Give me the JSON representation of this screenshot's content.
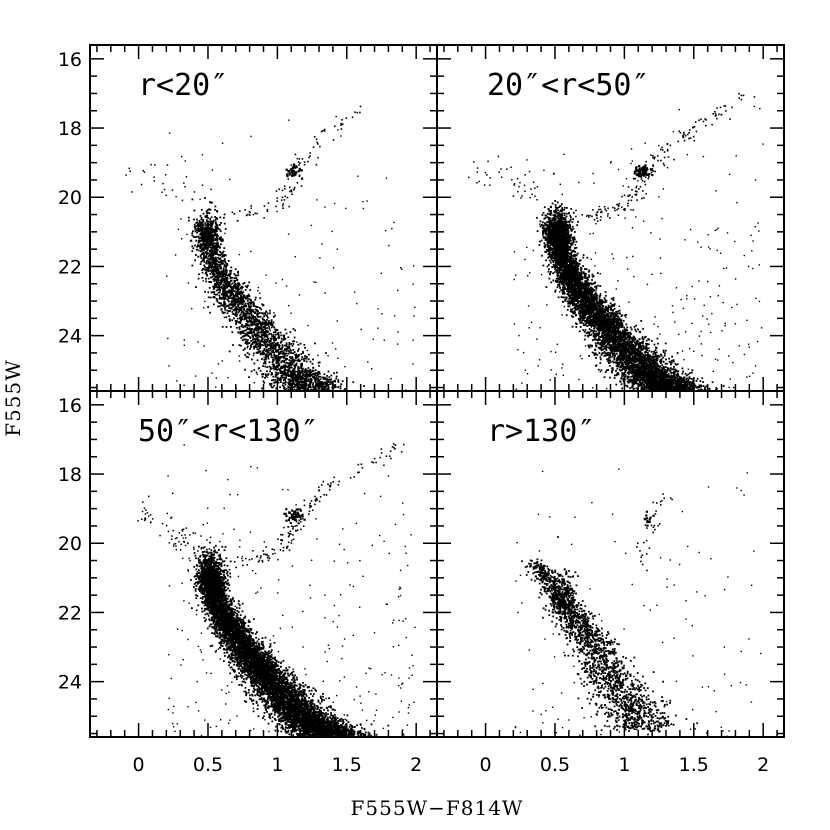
{
  "chart_data": {
    "type": "scatter",
    "xlabel": "F555W−F814W",
    "ylabel": "F555W",
    "xlim": [
      -0.35,
      2.15
    ],
    "ylim": [
      25.6,
      15.6
    ],
    "y_inverted": true,
    "x_ticks": [
      0,
      0.5,
      1,
      1.5,
      2
    ],
    "x_tick_labels": [
      "0",
      "0.5",
      "1",
      "1.5",
      "2"
    ],
    "y_ticks": [
      16,
      18,
      20,
      22,
      24
    ],
    "y_tick_labels": [
      "16",
      "18",
      "20",
      "22",
      "24"
    ],
    "grid": false,
    "panels": [
      {
        "label": "r<20″",
        "position": "top-left",
        "sequences": {
          "main_sequence_turnoff": {
            "x": 0.5,
            "y": 21.0
          },
          "main_sequence_ridge": [
            [
              0.48,
              20.8
            ],
            [
              0.55,
              22.0
            ],
            [
              0.7,
              23.0
            ],
            [
              0.9,
              24.0
            ],
            [
              1.1,
              25.0
            ],
            [
              1.25,
              25.6
            ]
          ],
          "red_giant_branch": [
            [
              0.7,
              20.6
            ],
            [
              1.0,
              20.2
            ],
            [
              1.1,
              19.6
            ],
            [
              1.2,
              19.0
            ],
            [
              1.35,
              18.2
            ],
            [
              1.6,
              17.4
            ]
          ],
          "red_clump": {
            "x": 1.12,
            "y": 19.25
          },
          "horizontal_branch_blue": [
            [
              -0.1,
              19.3
            ],
            [
              0.2,
              19.5
            ],
            [
              0.45,
              19.8
            ]
          ]
        }
      },
      {
        "label": "20″<r<50″",
        "position": "top-right",
        "sequences": {
          "main_sequence_turnoff": {
            "x": 0.52,
            "y": 21.0
          },
          "main_sequence_ridge": [
            [
              0.5,
              20.8
            ],
            [
              0.58,
              22.0
            ],
            [
              0.72,
              23.0
            ],
            [
              0.92,
              24.0
            ],
            [
              1.15,
              25.0
            ],
            [
              1.35,
              25.6
            ]
          ],
          "red_giant_branch": [
            [
              0.7,
              20.6
            ],
            [
              1.0,
              20.3
            ],
            [
              1.12,
              19.6
            ],
            [
              1.25,
              18.8
            ],
            [
              1.5,
              18.0
            ],
            [
              1.9,
              17.0
            ]
          ],
          "red_clump": {
            "x": 1.13,
            "y": 19.25
          },
          "horizontal_branch_blue": [
            [
              -0.1,
              19.3
            ],
            [
              0.2,
              19.5
            ],
            [
              0.45,
              19.9
            ]
          ]
        }
      },
      {
        "label": "50″<r<130″",
        "position": "bottom-left",
        "sequences": {
          "main_sequence_turnoff": {
            "x": 0.52,
            "y": 21.0
          },
          "main_sequence_ridge": [
            [
              0.5,
              20.8
            ],
            [
              0.6,
              22.0
            ],
            [
              0.75,
              23.0
            ],
            [
              0.95,
              24.0
            ],
            [
              1.18,
              25.0
            ],
            [
              1.4,
              25.6
            ]
          ],
          "red_giant_branch": [
            [
              0.7,
              20.6
            ],
            [
              1.0,
              20.3
            ],
            [
              1.1,
              19.7
            ],
            [
              1.2,
              19.0
            ],
            [
              1.4,
              18.2
            ],
            [
              1.9,
              17.2
            ]
          ],
          "red_clump": {
            "x": 1.12,
            "y": 19.2
          },
          "horizontal_branch_blue": [
            [
              0.0,
              19.0
            ],
            [
              0.25,
              19.8
            ],
            [
              0.45,
              20.2
            ]
          ]
        }
      },
      {
        "label": "r>130″",
        "position": "bottom-right",
        "sequences": {
          "main_sequence_turnoff": {
            "x": 0.55,
            "y": 21.5
          },
          "main_sequence_ridge": [
            [
              0.35,
              20.5
            ],
            [
              0.55,
              21.6
            ],
            [
              0.7,
              22.5
            ],
            [
              0.85,
              23.5
            ],
            [
              1.0,
              24.5
            ],
            [
              1.15,
              25.4
            ]
          ],
          "red_giant_branch": [
            [
              1.1,
              20.8
            ],
            [
              1.15,
              20.0
            ],
            [
              1.2,
              19.3
            ],
            [
              1.3,
              18.5
            ]
          ],
          "red_clump": {
            "x": 1.15,
            "y": 19.3
          }
        }
      }
    ]
  }
}
